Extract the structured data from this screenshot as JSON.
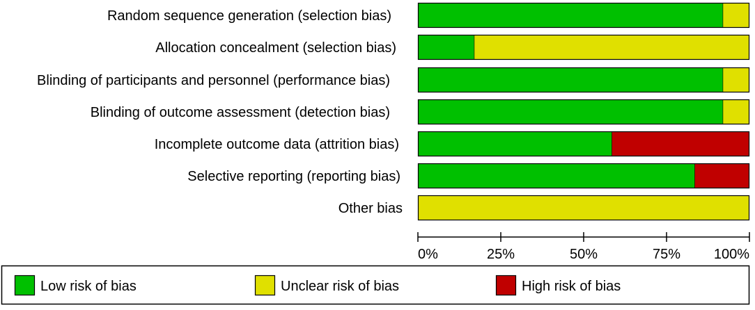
{
  "chart_data": {
    "type": "bar",
    "orientation": "horizontal",
    "stacked": true,
    "percent_scale": true,
    "title": "",
    "xlabel": "",
    "ylabel": "",
    "xlim": [
      0,
      100
    ],
    "categories": [
      "Random sequence generation (selection bias)",
      "Allocation concealment (selection bias)",
      "Blinding of participants and personnel (performance bias)",
      "Blinding of outcome assessment (detection bias)",
      "Incomplete outcome data (attrition bias)",
      "Selective reporting (reporting bias)",
      "Other bias"
    ],
    "series": [
      {
        "name": "Low risk of bias",
        "color": "#00c000",
        "values": [
          92,
          17,
          92,
          92,
          58.5,
          83.5,
          0
        ]
      },
      {
        "name": "Unclear risk of bias",
        "color": "#e0e000",
        "values": [
          8,
          83,
          8,
          8,
          0,
          0,
          100
        ]
      },
      {
        "name": "High risk of bias",
        "color": "#c00000",
        "values": [
          0,
          0,
          0,
          0,
          41.5,
          16.5,
          0
        ]
      }
    ],
    "ticks": [
      {
        "value": 0,
        "label": "0%"
      },
      {
        "value": 25,
        "label": "25%"
      },
      {
        "value": 50,
        "label": "50%"
      },
      {
        "value": 75,
        "label": "75%"
      },
      {
        "value": 100,
        "label": "100%"
      }
    ],
    "grid": false,
    "legend": {
      "position": "bottom"
    }
  }
}
